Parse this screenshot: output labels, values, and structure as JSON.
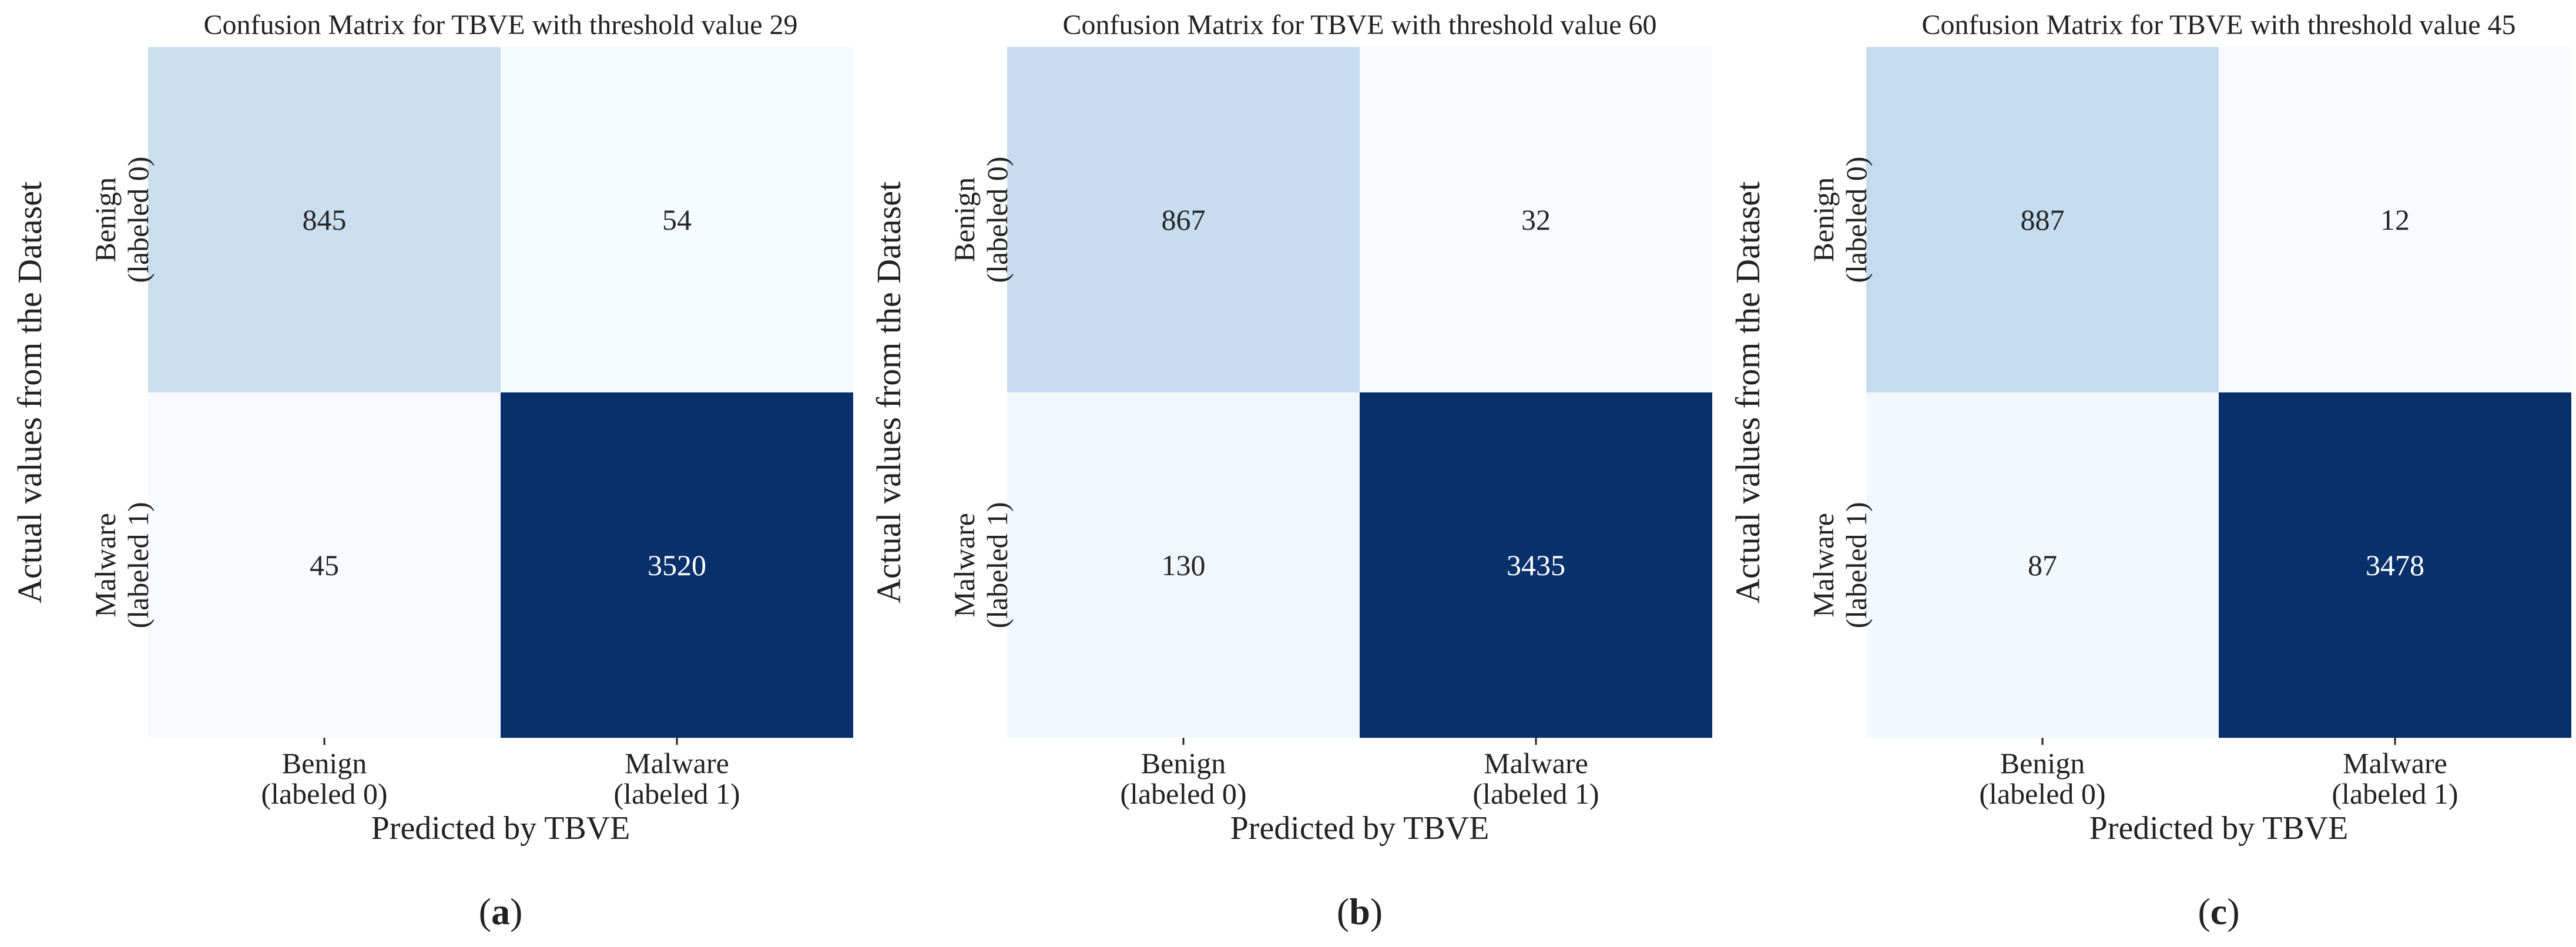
{
  "chart_data": [
    {
      "type": "heatmap",
      "title": "Confusion Matrix for TBVE with threshold value 29",
      "ylabel": "Actual values from the Dataset",
      "xlabel": "Predicted by TBVE",
      "row_labels": [
        [
          "Benign",
          "(labeled 0)"
        ],
        [
          "Malware",
          "(labeled 1)"
        ]
      ],
      "col_labels": [
        [
          "Benign",
          "(labeled 0)"
        ],
        [
          "Malware",
          "(labeled 1)"
        ]
      ],
      "matrix": [
        [
          845,
          54
        ],
        [
          45,
          3520
        ]
      ],
      "colormap": "Blues",
      "colorbar": false,
      "caption": "a"
    },
    {
      "type": "heatmap",
      "title": "Confusion Matrix for TBVE with threshold value 60",
      "ylabel": "Actual values from the Dataset",
      "xlabel": "Predicted by TBVE",
      "row_labels": [
        [
          "Benign",
          "(labeled 0)"
        ],
        [
          "Malware",
          "(labeled 1)"
        ]
      ],
      "col_labels": [
        [
          "Benign",
          "(labeled 0)"
        ],
        [
          "Malware",
          "(labeled 1)"
        ]
      ],
      "matrix": [
        [
          867,
          32
        ],
        [
          130,
          3435
        ]
      ],
      "colormap": "Blues",
      "colorbar": false,
      "caption": "b"
    },
    {
      "type": "heatmap",
      "title": "Confusion Matrix for TBVE with threshold value 45",
      "ylabel": "Actual values from the Dataset",
      "xlabel": "Predicted by TBVE",
      "row_labels": [
        [
          "Benign",
          "(labeled 0)"
        ],
        [
          "Malware",
          "(labeled 1)"
        ]
      ],
      "col_labels": [
        [
          "Benign",
          "(labeled 0)"
        ],
        [
          "Malware",
          "(labeled 1)"
        ]
      ],
      "matrix": [
        [
          887,
          12
        ],
        [
          87,
          3478
        ]
      ],
      "colormap": "Blues",
      "colorbar": false,
      "caption": "c"
    }
  ],
  "colors": {
    "low": "#f7fbff",
    "high": "#08306b",
    "text_dark": "#262626",
    "text_light": "#ffffff"
  }
}
